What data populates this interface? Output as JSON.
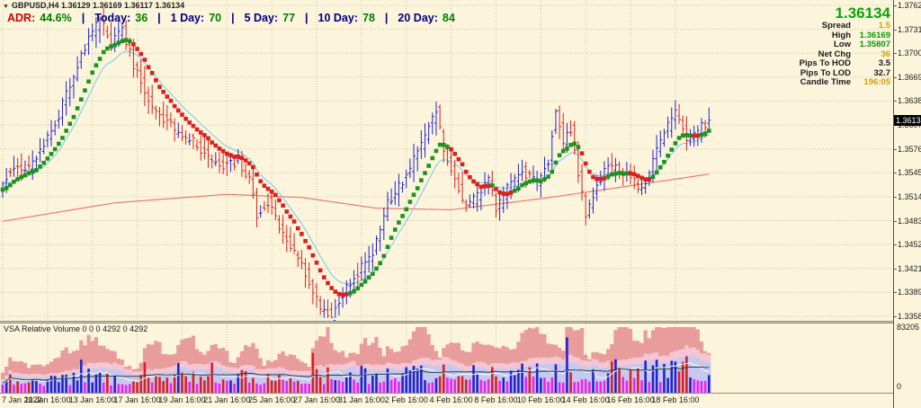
{
  "title_bar": {
    "symbol_info": "GBPUSD,H4  1.36129 1.36169 1.36117 1.36134"
  },
  "adr": {
    "separator": "|",
    "items": [
      {
        "label": "ADR:",
        "value": "44.6%"
      },
      {
        "label": "Today:",
        "value": "36"
      },
      {
        "label": "1 Day:",
        "value": "70"
      },
      {
        "label": "5 Day:",
        "value": "77"
      },
      {
        "label": "10 Day:",
        "value": "78"
      },
      {
        "label": "20 Day:",
        "value": "84"
      }
    ]
  },
  "info_panel": {
    "price": "1.36134",
    "rows": [
      {
        "label": "Spread",
        "value": "1.5",
        "color": "yellow"
      },
      {
        "label": "High",
        "value": "1.36169",
        "color": "green"
      },
      {
        "label": "Low",
        "value": "1.35807",
        "color": "green"
      },
      {
        "label": "Net Chg",
        "value": "36",
        "color": "yellow"
      },
      {
        "label": "Pips To HOD",
        "value": "3.5",
        "color": "black"
      },
      {
        "label": "Pips To LOD",
        "value": "32.7",
        "color": "black"
      },
      {
        "label": "Candle Time",
        "value": "196:05",
        "color": "yellow"
      }
    ]
  },
  "price_axis": {
    "top_value": 1.37625,
    "bottom_value": 1.33585,
    "current": "1.36134",
    "current_value": 1.36134,
    "ticks": [
      "1.37625",
      "1.37315",
      "1.37005",
      "1.36695",
      "1.36385",
      "1.36070",
      "1.35760",
      "1.35450",
      "1.35140",
      "1.34830",
      "1.34520",
      "1.34210",
      "1.33895",
      "1.33585"
    ]
  },
  "time_axis": {
    "labels": [
      "7 Jan 2022",
      "11 Jan 16:00",
      "13 Jan 16:00",
      "17 Jan 16:00",
      "19 Jan 16:00",
      "21 Jan 16:00",
      "25 Jan 16:00",
      "27 Jan 16:00",
      "31 Jan 16:00",
      "2 Feb 16:00",
      "4 Feb 16:00",
      "8 Feb 16:00",
      "10 Feb 16:00",
      "14 Feb 16:00",
      "16 Feb 16:00",
      "18 Feb 16:00"
    ],
    "bars_per_tick": 12
  },
  "sub_axis": {
    "top": "83205",
    "bottom": "0",
    "max": 83205
  },
  "sub_label": "VSA Relative Volume 0 0 0 4292 0 4292",
  "colors": {
    "background": "#FCF5DC",
    "grid": "#C9C2AC",
    "bull": "#2323CD",
    "bear": "#DC1F1F",
    "dot_up": "#1E921E",
    "dot_down": "#DC1F1F",
    "fast_ma": "#7FCBE8",
    "slow_ma": "#E87070",
    "band_high": "#E89C9C",
    "band_mid": "#F5C6D2",
    "band_low": "#C6C8EF",
    "vol_low": "#EE22EE",
    "vol_avg": "#26413B",
    "vol_white": "#FFFFFF",
    "label_navy": "#00007D",
    "value_green": "#007D00",
    "adr_red": "#D40000",
    "value_yellow": "#C9A40A",
    "big_price_green": "#0AA30A",
    "cur_tag_bg": "#000000",
    "cur_tag_text": "#FFFFFF"
  },
  "chart_data": {
    "type": "ohlc-bars",
    "symbol": "GBPUSD",
    "timeframe": "H4",
    "count": 190,
    "seed": 11,
    "noise": 0.0012,
    "wick": 0.0014,
    "high_clamp": 1.376,
    "low_clamp": 1.33565,
    "last_close": 1.36134,
    "price_waypoints": [
      [
        0,
        1.3527
      ],
      [
        4,
        1.3555
      ],
      [
        8,
        1.3548
      ],
      [
        12,
        1.3585
      ],
      [
        16,
        1.362
      ],
      [
        20,
        1.3672
      ],
      [
        24,
        1.3718
      ],
      [
        27,
        1.3745
      ],
      [
        30,
        1.3712
      ],
      [
        33,
        1.373
      ],
      [
        36,
        1.3685
      ],
      [
        40,
        1.364
      ],
      [
        44,
        1.3616
      ],
      [
        48,
        1.3596
      ],
      [
        52,
        1.3585
      ],
      [
        56,
        1.3565
      ],
      [
        60,
        1.3556
      ],
      [
        64,
        1.356
      ],
      [
        67,
        1.354
      ],
      [
        69,
        1.349
      ],
      [
        72,
        1.3508
      ],
      [
        75,
        1.3475
      ],
      [
        79,
        1.344
      ],
      [
        83,
        1.3405
      ],
      [
        86,
        1.337
      ],
      [
        89,
        1.3358
      ],
      [
        92,
        1.3388
      ],
      [
        96,
        1.3415
      ],
      [
        100,
        1.3442
      ],
      [
        104,
        1.3505
      ],
      [
        108,
        1.3535
      ],
      [
        112,
        1.357
      ],
      [
        115,
        1.3605
      ],
      [
        117,
        1.3625
      ],
      [
        119,
        1.3575
      ],
      [
        122,
        1.354
      ],
      [
        125,
        1.3498
      ],
      [
        128,
        1.3515
      ],
      [
        131,
        1.354
      ],
      [
        133,
        1.3495
      ],
      [
        136,
        1.3525
      ],
      [
        140,
        1.3548
      ],
      [
        144,
        1.353
      ],
      [
        147,
        1.3562
      ],
      [
        149,
        1.363
      ],
      [
        151,
        1.3585
      ],
      [
        153,
        1.3602
      ],
      [
        155,
        1.3545
      ],
      [
        157,
        1.349
      ],
      [
        160,
        1.353
      ],
      [
        163,
        1.3555
      ],
      [
        166,
        1.3548
      ],
      [
        169,
        1.354
      ],
      [
        172,
        1.352
      ],
      [
        175,
        1.3562
      ],
      [
        178,
        1.3595
      ],
      [
        181,
        1.3625
      ],
      [
        184,
        1.359
      ],
      [
        187,
        1.36
      ],
      [
        190,
        1.3613
      ]
    ],
    "fast_ma_period": 16,
    "dot_ma_period": 10,
    "slow_ma_waypoints": [
      [
        0,
        1.3482
      ],
      [
        30,
        1.3506
      ],
      [
        60,
        1.3517
      ],
      [
        80,
        1.3513
      ],
      [
        100,
        1.3499
      ],
      [
        120,
        1.3497
      ],
      [
        145,
        1.3512
      ],
      [
        165,
        1.3526
      ],
      [
        190,
        1.3544
      ]
    ],
    "volume": {
      "base_start": 14000,
      "base_end": 30000,
      "low_ratio": 0.42,
      "spike_chance": 0.12,
      "spike_mult": 1.8,
      "band_low_mult": 1.55,
      "band_mid_mult": 1.95,
      "band_high_mult": 3.2,
      "avg_mult": 1.25,
      "white_mult": 1.15
    }
  }
}
